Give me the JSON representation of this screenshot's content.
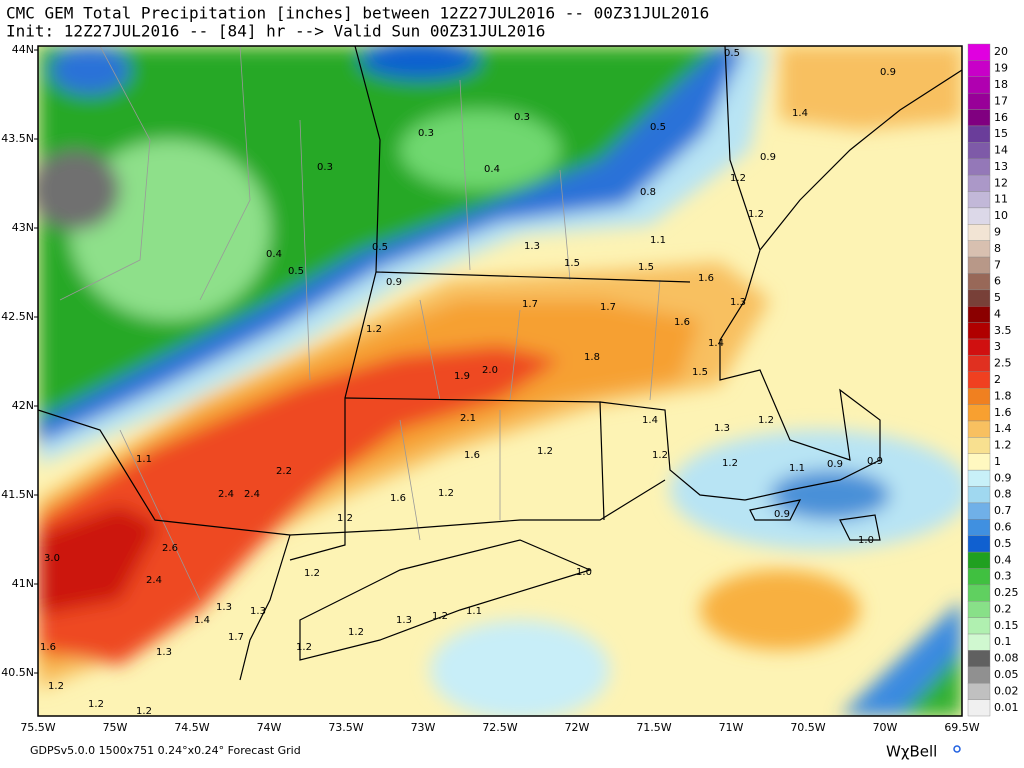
{
  "header": {
    "line1": "CMC GEM Total Precipitation [inches] between 12Z27JUL2016 -- 00Z31JUL2016",
    "line2": "Init: 12Z27JUL2016 -- [84] hr --> Valid Sun 00Z31JUL2016"
  },
  "lat_labels": [
    "44N",
    "43.5N",
    "43N",
    "42.5N",
    "42N",
    "41.5N",
    "41N",
    "40.5N"
  ],
  "lon_labels": [
    "75.5W",
    "75W",
    "74.5W",
    "74W",
    "73.5W",
    "73W",
    "72.5W",
    "72W",
    "71.5W",
    "71W",
    "70.5W",
    "70W",
    "69.5W"
  ],
  "colorbar": {
    "labels": [
      "20",
      "19",
      "18",
      "17",
      "16",
      "15",
      "14",
      "13",
      "12",
      "11",
      "10",
      "9",
      "8",
      "7",
      "6",
      "5",
      "4",
      "3.5",
      "3",
      "2.5",
      "2",
      "1.8",
      "1.6",
      "1.4",
      "1.2",
      "1",
      "0.9",
      "0.8",
      "0.7",
      "0.6",
      "0.5",
      "0.4",
      "0.3",
      "0.25",
      "0.2",
      "0.15",
      "0.1",
      "0.08",
      "0.05",
      "0.02",
      "0.01"
    ],
    "colors": [
      "#e000e0",
      "#c800c8",
      "#b000b0",
      "#980098",
      "#800080",
      "#6a3d9a",
      "#7e5aa8",
      "#9478b8",
      "#ab98c8",
      "#c2b8d8",
      "#dcd8e8",
      "#f2e4d4",
      "#d8c0b0",
      "#b89888",
      "#986858",
      "#784038",
      "#8b0000",
      "#b00000",
      "#d01010",
      "#e03020",
      "#f04020",
      "#f08020",
      "#f8a030",
      "#f8c060",
      "#f8e090",
      "#fff8c0",
      "#c8f0f8",
      "#a0d8f0",
      "#70b0e8",
      "#4090e0",
      "#1060d0",
      "#20a020",
      "#40c040",
      "#60d060",
      "#88e088",
      "#b0f0b0",
      "#d0f8d0",
      "#606060",
      "#909090",
      "#c0c0c0",
      "#f0f0f0"
    ]
  },
  "map_labels": [
    "0.5",
    "0.9",
    "1.4",
    "0.3",
    "0.3",
    "0.5",
    "0.9",
    "0.3",
    "0.4",
    "0.8",
    "1.2",
    "1.2",
    "0.4",
    "0.5",
    "0.5",
    "1.3",
    "1.1",
    "1.5",
    "1.5",
    "1.6",
    "0.9",
    "1.7",
    "1.7",
    "1.3",
    "1.6",
    "1.2",
    "1.4",
    "1.8",
    "1.9",
    "2.0",
    "1.5",
    "1.2",
    "1.4",
    "1.3",
    "2.1",
    "1.6",
    "1.2",
    "1.2",
    "1.1",
    "2.2",
    "1.2",
    "1.1",
    "0.9",
    "0.9",
    "2.4",
    "2.4",
    "1.6",
    "1.2",
    "0.9",
    "1.2",
    "1.0",
    "2.6",
    "3.0",
    "1.2",
    "2.4",
    "1.0",
    "1.3",
    "1.3",
    "1.4",
    "1.1",
    "1.2",
    "1.3",
    "1.2",
    "1.7",
    "1.2",
    "1.3",
    "1.6",
    "1.2",
    "1.2",
    "1.2"
  ],
  "footer": {
    "left": "GDPSv5.0.0 1500x751 0.24°x0.24° Forecast Grid",
    "logo": "WχBell"
  }
}
